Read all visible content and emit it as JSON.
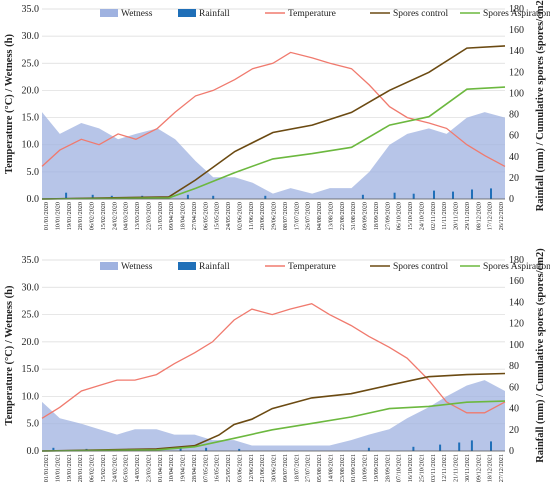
{
  "colors": {
    "wetness": "#9fb2e0",
    "rainfall": "#1f6fb8",
    "temperature": "#f07a6e",
    "spores_control": "#6b4a12",
    "spores_aspiration": "#6cb83f",
    "grid": "#d9d9d9",
    "axis": "#555555"
  },
  "chart_data": [
    {
      "type": "area",
      "title": "",
      "legend": {
        "placement": "top",
        "entries": [
          "Wetness",
          "Rainfall",
          "Temperature",
          "Spores control",
          "Spores Aspiration"
        ]
      },
      "ylabel": "Temperature (°C) / Wetness (h)",
      "y2label": "Rainfall (mm) / Cumulative spores (spores/cm2)",
      "ylim": [
        0,
        35
      ],
      "y2lim": [
        0,
        180
      ],
      "yticks": [
        "0.0",
        "5.0",
        "10.0",
        "15.0",
        "20.0",
        "25.0",
        "30.0",
        "35.0"
      ],
      "y2ticks": [
        "0",
        "20",
        "40",
        "60",
        "80",
        "100",
        "120",
        "140",
        "160",
        "180"
      ],
      "grid": true,
      "x_start": "2020-01-01",
      "x_end": "2020-12-31",
      "xtick_labels": [
        "01/01/2020",
        "10/01/2020",
        "19/01/2020",
        "28/01/2020",
        "06/02/2020",
        "15/02/2020",
        "24/02/2020",
        "04/03/2020",
        "13/03/2020",
        "22/03/2020",
        "31/03/2020",
        "09/04/2020",
        "18/04/2020",
        "27/04/2020",
        "06/05/2020",
        "15/05/2020",
        "24/05/2020",
        "02/06/2020",
        "11/06/2020",
        "20/06/2020",
        "29/06/2020",
        "08/07/2020",
        "17/07/2020",
        "26/07/2020",
        "04/08/2020",
        "13/08/2020",
        "22/08/2020",
        "31/08/2020",
        "09/09/2020",
        "18/09/2020",
        "27/09/2020",
        "06/10/2020",
        "15/10/2020",
        "24/10/2020",
        "02/11/2020",
        "11/11/2020",
        "20/11/2020",
        "29/11/2020",
        "08/12/2020",
        "17/12/2020",
        "26/12/2020"
      ],
      "series": [
        {
          "name": "Wetness",
          "axis": "left",
          "kind": "area",
          "x": [
            "2020-01-01",
            "2020-01-15",
            "2020-02-01",
            "2020-02-15",
            "2020-03-01",
            "2020-03-15",
            "2020-04-01",
            "2020-04-15",
            "2020-05-01",
            "2020-05-15",
            "2020-06-01",
            "2020-06-15",
            "2020-07-01",
            "2020-07-15",
            "2020-08-01",
            "2020-08-15",
            "2020-09-01",
            "2020-09-15",
            "2020-10-01",
            "2020-10-15",
            "2020-11-01",
            "2020-11-15",
            "2020-12-01",
            "2020-12-15",
            "2020-12-31"
          ],
          "y": [
            16,
            12,
            14,
            13,
            11,
            12,
            13,
            11,
            7,
            4,
            4,
            3,
            1,
            2,
            1,
            2,
            2,
            5,
            10,
            12,
            13,
            12,
            15,
            16,
            15
          ]
        },
        {
          "name": "Rainfall",
          "axis": "right",
          "kind": "bar",
          "x": [
            "2020-01-20",
            "2020-02-10",
            "2020-02-25",
            "2020-03-20",
            "2020-04-25",
            "2020-05-15",
            "2020-06-25",
            "2020-09-10",
            "2020-10-05",
            "2020-10-20",
            "2020-11-05",
            "2020-11-20",
            "2020-12-05",
            "2020-12-20"
          ],
          "y": [
            6,
            4,
            3,
            3,
            4,
            3,
            3,
            4,
            6,
            5,
            8,
            7,
            9,
            10
          ]
        },
        {
          "name": "Temperature",
          "axis": "left",
          "kind": "line",
          "x": [
            "2020-01-01",
            "2020-01-15",
            "2020-02-01",
            "2020-02-15",
            "2020-03-01",
            "2020-03-15",
            "2020-04-01",
            "2020-04-15",
            "2020-05-01",
            "2020-05-15",
            "2020-06-01",
            "2020-06-15",
            "2020-07-01",
            "2020-07-15",
            "2020-08-01",
            "2020-08-15",
            "2020-09-01",
            "2020-09-15",
            "2020-10-01",
            "2020-10-15",
            "2020-11-01",
            "2020-11-15",
            "2020-12-01",
            "2020-12-15",
            "2020-12-31"
          ],
          "y": [
            6,
            9,
            11,
            10,
            12,
            11,
            13,
            16,
            19,
            20,
            22,
            24,
            25,
            27,
            26,
            25,
            24,
            21,
            17,
            15,
            14,
            13,
            10,
            8,
            6
          ]
        },
        {
          "name": "Spores control",
          "axis": "right",
          "kind": "line",
          "x": [
            "2020-01-01",
            "2020-04-10",
            "2020-05-01",
            "2020-06-01",
            "2020-07-01",
            "2020-08-01",
            "2020-09-01",
            "2020-10-01",
            "2020-11-01",
            "2020-12-01",
            "2020-12-31"
          ],
          "y": [
            0,
            2,
            18,
            45,
            63,
            70,
            82,
            103,
            120,
            143,
            145
          ]
        },
        {
          "name": "Spores Aspiration",
          "axis": "right",
          "kind": "line",
          "x": [
            "2020-01-01",
            "2020-04-10",
            "2020-05-01",
            "2020-06-01",
            "2020-07-01",
            "2020-08-01",
            "2020-09-01",
            "2020-10-01",
            "2020-11-01",
            "2020-12-01",
            "2020-12-31"
          ],
          "y": [
            0,
            1,
            10,
            25,
            38,
            43,
            49,
            70,
            78,
            104,
            106
          ]
        }
      ]
    },
    {
      "type": "area",
      "title": "",
      "legend": {
        "placement": "top",
        "entries": [
          "Wetness",
          "Rainfall",
          "Temperature",
          "Spores control",
          "Spores Aspiration"
        ]
      },
      "ylabel": "Temperature (°C) / Wetness (h)",
      "y2label": "Rainfall (mm) / Cumulative spores (spores/cm2)",
      "ylim": [
        0,
        35
      ],
      "y2lim": [
        0,
        180
      ],
      "yticks": [
        "0.0",
        "5.0",
        "10.0",
        "15.0",
        "20.0",
        "25.0",
        "30.0",
        "35.0"
      ],
      "y2ticks": [
        "0",
        "20",
        "40",
        "60",
        "80",
        "100",
        "120",
        "140",
        "160",
        "180"
      ],
      "grid": true,
      "x_start": "2021-01-01",
      "x_end": "2021-12-31",
      "xtick_labels": [
        "01/01/2021",
        "10/01/2021",
        "19/01/2021",
        "28/01/2021",
        "06/02/2021",
        "15/02/2021",
        "24/02/2021",
        "05/03/2021",
        "14/03/2021",
        "23/03/2021",
        "01/04/2021",
        "10/04/2021",
        "19/04/2021",
        "28/04/2021",
        "07/05/2021",
        "16/05/2021",
        "25/05/2021",
        "03/06/2021",
        "12/06/2021",
        "21/06/2021",
        "30/06/2021",
        "09/07/2021",
        "18/07/2021",
        "27/07/2021",
        "05/08/2021",
        "14/08/2021",
        "23/08/2021",
        "01/09/2021",
        "10/09/2021",
        "19/09/2021",
        "28/09/2021",
        "07/10/2021",
        "16/10/2021",
        "25/10/2021",
        "03/11/2021",
        "12/11/2021",
        "21/11/2021",
        "30/11/2021",
        "09/12/2021",
        "18/12/2021",
        "27/12/2021"
      ],
      "series": [
        {
          "name": "Wetness",
          "axis": "left",
          "kind": "area",
          "x": [
            "2021-01-01",
            "2021-01-15",
            "2021-02-01",
            "2021-02-15",
            "2021-03-01",
            "2021-03-15",
            "2021-04-01",
            "2021-04-15",
            "2021-05-01",
            "2021-05-15",
            "2021-06-01",
            "2021-06-15",
            "2021-07-01",
            "2021-07-15",
            "2021-08-01",
            "2021-08-15",
            "2021-09-01",
            "2021-09-15",
            "2021-10-01",
            "2021-10-15",
            "2021-11-01",
            "2021-11-15",
            "2021-12-01",
            "2021-12-15",
            "2021-12-31"
          ],
          "y": [
            9,
            6,
            5,
            4,
            3,
            4,
            4,
            3,
            3,
            2,
            2,
            1,
            1,
            1,
            1,
            1,
            2,
            3,
            4,
            6,
            8,
            10,
            12,
            13,
            11
          ]
        },
        {
          "name": "Rainfall",
          "axis": "right",
          "kind": "bar",
          "x": [
            "2021-01-10",
            "2021-02-05",
            "2021-03-10",
            "2021-04-20",
            "2021-05-10",
            "2021-06-05",
            "2021-09-15",
            "2021-10-20",
            "2021-11-10",
            "2021-11-25",
            "2021-12-05",
            "2021-12-20"
          ],
          "y": [
            3,
            2,
            2,
            3,
            3,
            2,
            3,
            4,
            6,
            8,
            10,
            9
          ]
        },
        {
          "name": "Temperature",
          "axis": "left",
          "kind": "line",
          "x": [
            "2021-01-01",
            "2021-01-15",
            "2021-02-01",
            "2021-02-15",
            "2021-03-01",
            "2021-03-15",
            "2021-04-01",
            "2021-04-15",
            "2021-05-01",
            "2021-05-15",
            "2021-06-01",
            "2021-06-15",
            "2021-07-01",
            "2021-07-15",
            "2021-08-01",
            "2021-08-15",
            "2021-09-01",
            "2021-09-15",
            "2021-10-01",
            "2021-10-15",
            "2021-11-01",
            "2021-11-15",
            "2021-12-01",
            "2021-12-15",
            "2021-12-31"
          ],
          "y": [
            6,
            8,
            11,
            12,
            13,
            13,
            14,
            16,
            18,
            20,
            24,
            26,
            25,
            26,
            27,
            25,
            23,
            21,
            19,
            17,
            13,
            9,
            7,
            7,
            9
          ]
        },
        {
          "name": "Spores control",
          "axis": "right",
          "kind": "line",
          "x": [
            "2021-01-01",
            "2021-04-01",
            "2021-05-01",
            "2021-05-20",
            "2021-06-01",
            "2021-06-15",
            "2021-07-01",
            "2021-08-01",
            "2021-09-01",
            "2021-10-01",
            "2021-11-01",
            "2021-12-01",
            "2021-12-31"
          ],
          "y": [
            0,
            2,
            5,
            15,
            25,
            30,
            40,
            50,
            54,
            62,
            70,
            72,
            73
          ]
        },
        {
          "name": "Spores Aspiration",
          "axis": "right",
          "kind": "line",
          "x": [
            "2021-01-01",
            "2021-04-01",
            "2021-05-01",
            "2021-06-01",
            "2021-07-01",
            "2021-08-01",
            "2021-09-01",
            "2021-10-01",
            "2021-11-01",
            "2021-12-01",
            "2021-12-31"
          ],
          "y": [
            0,
            1,
            4,
            12,
            20,
            26,
            32,
            40,
            42,
            46,
            47
          ]
        }
      ]
    }
  ]
}
